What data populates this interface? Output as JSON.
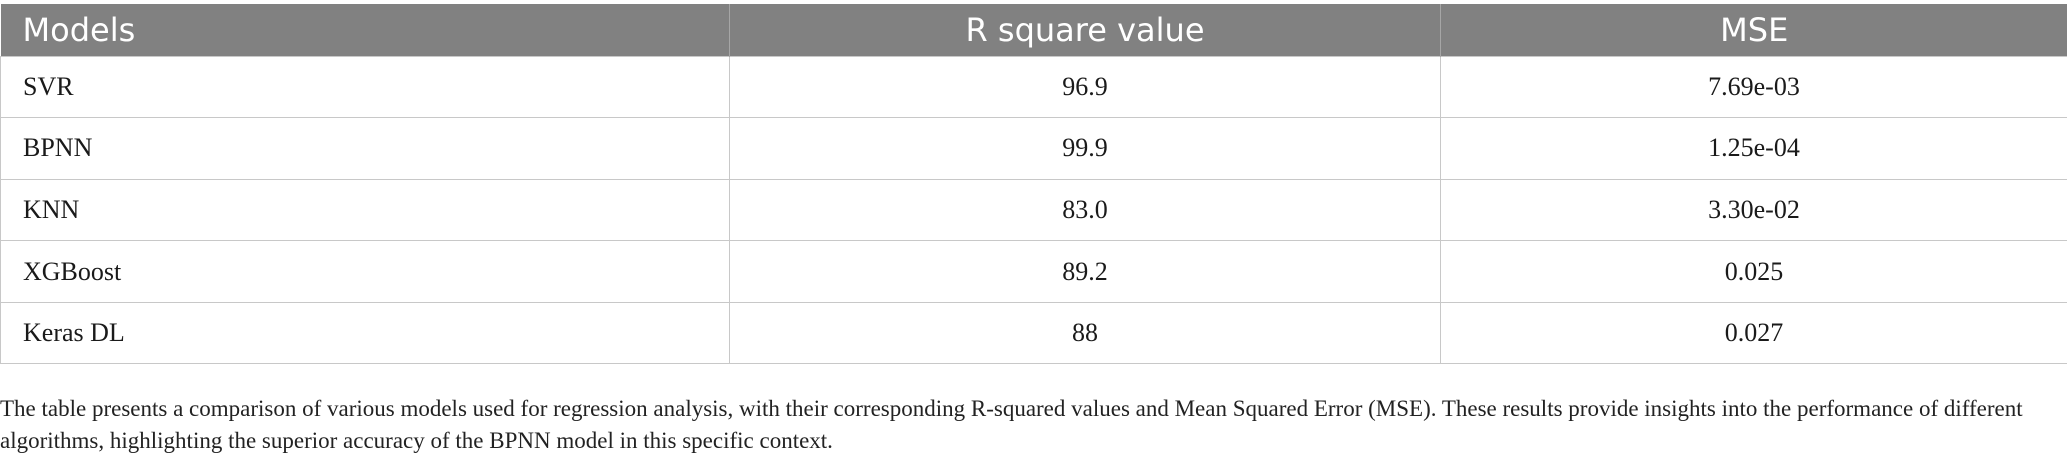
{
  "table": {
    "headers": [
      "Models",
      "R square value",
      "MSE"
    ],
    "rows": [
      {
        "model": "SVR",
        "r2": "96.9",
        "mse": "7.69e-03"
      },
      {
        "model": "BPNN",
        "r2": "99.9",
        "mse": "1.25e-04"
      },
      {
        "model": "KNN",
        "r2": "83.0",
        "mse": "3.30e-02"
      },
      {
        "model": "XGBoost",
        "r2": "89.2",
        "mse": "0.025"
      },
      {
        "model": "Keras DL",
        "r2": "88",
        "mse": "0.027"
      }
    ]
  },
  "caption": "The table presents a comparison of various models used for regression analysis, with their corresponding R-squared values and Mean Squared Error (MSE). These results provide insights into the performance of different algorithms, highlighting the superior accuracy of the BPNN model in this specific context.",
  "colors": {
    "header_bg": "#818181",
    "header_text": "#ffffff",
    "grid": "#c8c8c8"
  }
}
